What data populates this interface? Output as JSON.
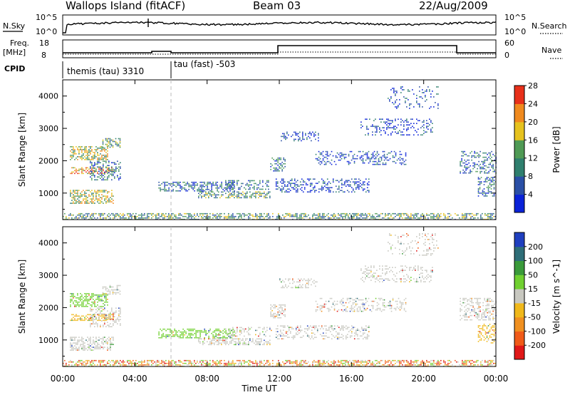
{
  "header": {
    "station": "Wallops Island (fitACF)",
    "beam": "Beam 03",
    "date": "22/Aug/2009"
  },
  "noise_panel": {
    "left_label": "N.Sky",
    "right_label": "N.Search",
    "left_ticks": [
      "10^5",
      "10^0"
    ],
    "right_ticks": [
      "10^5",
      "10^0"
    ]
  },
  "freq_panel": {
    "left_label": "Freq.",
    "left_unit": "[MHz]",
    "right_label": "Nave",
    "left_ticks": [
      "18",
      "8"
    ],
    "right_ticks": [
      "60",
      "0"
    ],
    "cpid_label": "CPID",
    "modes": [
      {
        "text": "themis (tau) 3310"
      },
      {
        "text": "tau (fast) -503"
      }
    ]
  },
  "chart_data": [
    {
      "type": "heatmap",
      "title": "",
      "ylabel": "Slant Range [km]",
      "xlabel": "",
      "ylim": [
        180,
        4500
      ],
      "y_ticks": [
        "1000",
        "2000",
        "3000",
        "4000"
      ],
      "colorbar": {
        "label": "Power [dB]",
        "ticks": [
          "4",
          "8",
          "12",
          "16",
          "20",
          "24",
          "28"
        ],
        "colors": [
          "#0a22d8",
          "#2a4fa6",
          "#2f7f6e",
          "#4f9a55",
          "#e6c21e",
          "#f08a1e",
          "#e8301a"
        ]
      }
    },
    {
      "type": "heatmap",
      "title": "",
      "ylabel": "Slant Range [km]",
      "xlabel": "Time UT",
      "ylim": [
        180,
        4500
      ],
      "y_ticks": [
        "1000",
        "2000",
        "3000",
        "4000"
      ],
      "x_ticks": [
        "00:00",
        "04:00",
        "08:00",
        "12:00",
        "16:00",
        "20:00",
        "00:00"
      ],
      "colorbar": {
        "label": "Velocity [m s^-1]",
        "ticks": [
          "200",
          "100",
          "50",
          "15",
          "-15",
          "-50",
          "-100",
          "-200"
        ],
        "colors": [
          "#1f3fbf",
          "#2e6e78",
          "#3a9a3a",
          "#70d030",
          "#c8c8c0",
          "#f0b81a",
          "#f09020",
          "#f05a18",
          "#e01818"
        ]
      }
    }
  ],
  "x_axis_label": "Time UT",
  "x_ticks": [
    "00:00",
    "04:00",
    "08:00",
    "12:00",
    "16:00",
    "20:00",
    "00:00"
  ]
}
